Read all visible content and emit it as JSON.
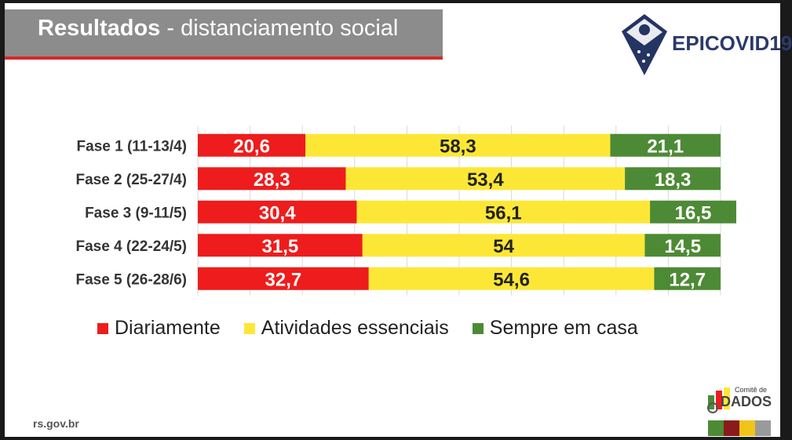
{
  "header": {
    "title_bold": "Resultados",
    "title_rest": " - distanciamento social"
  },
  "logo": {
    "text": "EPICOVID19"
  },
  "footer": {
    "url": "rs.gov.br",
    "comite_line1": "Comitê de",
    "comite_line2": "DADOS"
  },
  "colors": {
    "diariamente": "#ee1c1c",
    "atividades": "#fde736",
    "sempre": "#4d8a35",
    "title_bar": "#8c8c8c",
    "title_underline": "#d42a2a"
  },
  "chart_data": {
    "type": "bar",
    "orientation": "horizontal",
    "stacked": true,
    "categories": [
      "Fase 1 (11-13/4)",
      "Fase 2 (25-27/4)",
      "Fase 3 (9-11/5)",
      "Fase 4 (22-24/5)",
      "Fase 5 (26-28/6)"
    ],
    "series": [
      {
        "name": "Diariamente",
        "values": [
          20.6,
          28.3,
          30.4,
          31.5,
          32.7
        ],
        "labels": [
          "20,6",
          "28,3",
          "30,4",
          "31,5",
          "32,7"
        ]
      },
      {
        "name": "Atividades essenciais",
        "values": [
          58.3,
          53.4,
          56.1,
          54,
          54.6
        ],
        "labels": [
          "58,3",
          "53,4",
          "56,1",
          "54",
          "54,6"
        ]
      },
      {
        "name": "Sempre em casa",
        "values": [
          21.1,
          18.3,
          16.5,
          14.5,
          12.7
        ],
        "labels": [
          "21,1",
          "18,3",
          "16,5",
          "14,5",
          "12,7"
        ]
      }
    ],
    "xlim": [
      0,
      100
    ],
    "grid": true,
    "legend_position": "bottom"
  }
}
